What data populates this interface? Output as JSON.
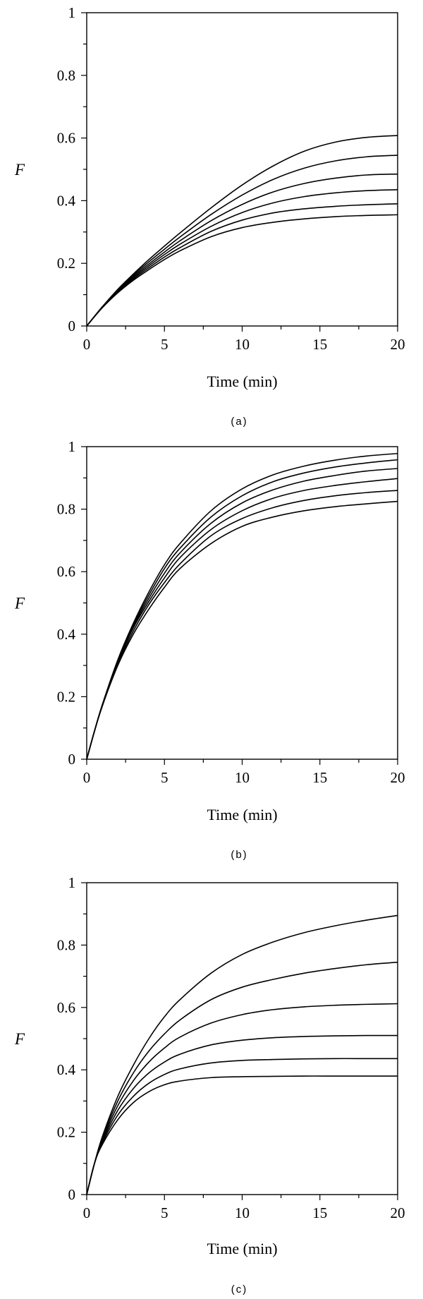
{
  "chart_data": [
    {
      "type": "line",
      "panel": "(a)",
      "xlabel": "Time (min)",
      "ylabel": "F",
      "xlim": [
        0,
        20
      ],
      "ylim": [
        0,
        1
      ],
      "xticks": [
        "0",
        "5",
        "10",
        "15",
        "20"
      ],
      "yticks": [
        "0",
        "0.2",
        "0.4",
        "0.6",
        "0.8",
        "1"
      ],
      "x": [
        0,
        1,
        2,
        3,
        4,
        5,
        6,
        8,
        10,
        12,
        14,
        16,
        18,
        20
      ],
      "series": [
        {
          "values": [
            0,
            0.058,
            0.106,
            0.146,
            0.18,
            0.212,
            0.24,
            0.285,
            0.314,
            0.331,
            0.342,
            0.349,
            0.353,
            0.355
          ]
        },
        {
          "values": [
            0,
            0.059,
            0.109,
            0.15,
            0.186,
            0.22,
            0.25,
            0.302,
            0.338,
            0.361,
            0.374,
            0.382,
            0.387,
            0.39
          ]
        },
        {
          "values": [
            0,
            0.06,
            0.111,
            0.154,
            0.192,
            0.228,
            0.261,
            0.318,
            0.362,
            0.393,
            0.413,
            0.425,
            0.432,
            0.435
          ]
        },
        {
          "values": [
            0,
            0.06,
            0.113,
            0.158,
            0.198,
            0.236,
            0.272,
            0.336,
            0.388,
            0.428,
            0.455,
            0.472,
            0.482,
            0.485
          ]
        },
        {
          "values": [
            0,
            0.061,
            0.115,
            0.162,
            0.205,
            0.245,
            0.284,
            0.356,
            0.418,
            0.468,
            0.504,
            0.527,
            0.54,
            0.545
          ]
        },
        {
          "values": [
            0,
            0.061,
            0.117,
            0.166,
            0.212,
            0.255,
            0.297,
            0.377,
            0.45,
            0.511,
            0.558,
            0.587,
            0.602,
            0.608
          ]
        }
      ]
    },
    {
      "type": "line",
      "panel": "(b)",
      "xlabel": "Time (min)",
      "ylabel": "F",
      "xlim": [
        0,
        20
      ],
      "ylim": [
        0,
        1
      ],
      "xticks": [
        "0",
        "5",
        "10",
        "15",
        "20"
      ],
      "yticks": [
        "0",
        "0.2",
        "0.4",
        "0.6",
        "0.8",
        "1"
      ],
      "x": [
        0,
        0.5,
        1,
        2,
        3,
        4,
        5,
        6,
        8,
        10,
        12,
        14,
        16,
        18,
        20
      ],
      "series": [
        {
          "values": [
            0,
            0.09,
            0.17,
            0.3,
            0.4,
            0.48,
            0.55,
            0.61,
            0.69,
            0.745,
            0.775,
            0.795,
            0.808,
            0.817,
            0.825
          ]
        },
        {
          "values": [
            0,
            0.09,
            0.17,
            0.305,
            0.41,
            0.495,
            0.565,
            0.625,
            0.715,
            0.77,
            0.805,
            0.828,
            0.843,
            0.853,
            0.86
          ]
        },
        {
          "values": [
            0,
            0.09,
            0.17,
            0.31,
            0.42,
            0.505,
            0.58,
            0.645,
            0.735,
            0.795,
            0.835,
            0.86,
            0.876,
            0.888,
            0.898
          ]
        },
        {
          "values": [
            0,
            0.09,
            0.172,
            0.312,
            0.425,
            0.515,
            0.595,
            0.66,
            0.755,
            0.82,
            0.862,
            0.89,
            0.908,
            0.922,
            0.93
          ]
        },
        {
          "values": [
            0,
            0.09,
            0.173,
            0.315,
            0.43,
            0.525,
            0.61,
            0.675,
            0.775,
            0.843,
            0.888,
            0.916,
            0.935,
            0.948,
            0.958
          ]
        },
        {
          "values": [
            0,
            0.09,
            0.174,
            0.318,
            0.435,
            0.535,
            0.622,
            0.69,
            0.795,
            0.865,
            0.91,
            0.938,
            0.957,
            0.97,
            0.978
          ]
        }
      ]
    },
    {
      "type": "line",
      "panel": "(c)",
      "xlabel": "Time (min)",
      "ylabel": "F",
      "xlim": [
        0,
        20
      ],
      "ylim": [
        0,
        1
      ],
      "xticks": [
        "0",
        "5",
        "10",
        "15",
        "20"
      ],
      "yticks": [
        "0",
        "0.2",
        "0.4",
        "0.6",
        "0.8",
        "1"
      ],
      "x": [
        0,
        0.5,
        1,
        2,
        3,
        4,
        5,
        6,
        8,
        10,
        12,
        14,
        16,
        18,
        20
      ],
      "series": [
        {
          "values": [
            0,
            0.1,
            0.16,
            0.24,
            0.295,
            0.33,
            0.352,
            0.364,
            0.375,
            0.378,
            0.379,
            0.38,
            0.38,
            0.38,
            0.38
          ]
        },
        {
          "values": [
            0,
            0.1,
            0.165,
            0.255,
            0.315,
            0.357,
            0.385,
            0.403,
            0.422,
            0.43,
            0.433,
            0.435,
            0.436,
            0.436,
            0.436
          ]
        },
        {
          "values": [
            0,
            0.1,
            0.17,
            0.27,
            0.34,
            0.39,
            0.425,
            0.45,
            0.48,
            0.495,
            0.503,
            0.507,
            0.509,
            0.51,
            0.51
          ]
        },
        {
          "values": [
            0,
            0.1,
            0.175,
            0.285,
            0.365,
            0.425,
            0.47,
            0.505,
            0.55,
            0.577,
            0.593,
            0.602,
            0.607,
            0.61,
            0.612
          ]
        },
        {
          "values": [
            0,
            0.1,
            0.18,
            0.3,
            0.39,
            0.46,
            0.515,
            0.56,
            0.625,
            0.665,
            0.69,
            0.71,
            0.725,
            0.737,
            0.745
          ]
        },
        {
          "values": [
            0,
            0.1,
            0.185,
            0.315,
            0.415,
            0.5,
            0.57,
            0.625,
            0.71,
            0.77,
            0.81,
            0.84,
            0.862,
            0.88,
            0.895
          ]
        }
      ]
    }
  ]
}
